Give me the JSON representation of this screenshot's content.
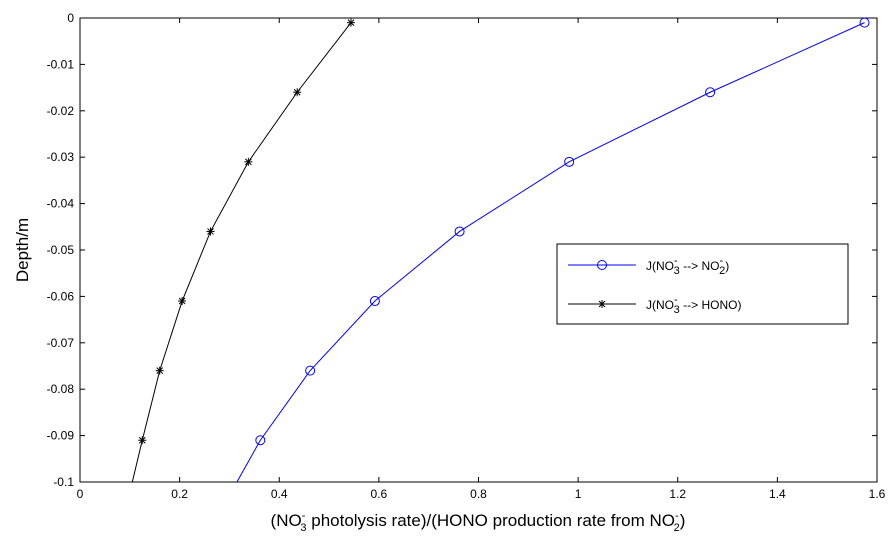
{
  "chart_data": {
    "type": "line",
    "xlabel": "(NO3- photolysis rate)/(HONO production rate from NO2-)",
    "ylabel": "Depth/m",
    "xlim": [
      0,
      1.6
    ],
    "ylim": [
      -0.1,
      0
    ],
    "x_ticks": [
      "0",
      "0.2",
      "0.4",
      "0.6",
      "0.8",
      "1",
      "1.2",
      "1.4",
      "1.6"
    ],
    "y_ticks": [
      "0",
      "-0.01",
      "-0.02",
      "-0.03",
      "-0.04",
      "-0.05",
      "-0.06",
      "-0.07",
      "-0.08",
      "-0.09",
      "-0.1"
    ],
    "grid": false,
    "legend_position": "right",
    "series": [
      {
        "name": "J(NO3- --> NO2-)",
        "color": "#0000ff",
        "marker": "circle",
        "x": [
          0.315,
          0.362,
          0.462,
          0.592,
          0.762,
          0.982,
          1.265,
          1.575
        ],
        "y": [
          -0.1,
          -0.091,
          -0.076,
          -0.061,
          -0.046,
          -0.031,
          -0.016,
          -0.001
        ],
        "marker_indices": [
          1,
          2,
          3,
          4,
          5,
          6,
          7
        ]
      },
      {
        "name": "J(NO3- --> HONO)",
        "color": "#000000",
        "marker": "star",
        "x": [
          0.105,
          0.125,
          0.16,
          0.205,
          0.262,
          0.338,
          0.436,
          0.544
        ],
        "y": [
          -0.1,
          -0.091,
          -0.076,
          -0.061,
          -0.046,
          -0.031,
          -0.016,
          -0.001
        ],
        "marker_indices": [
          1,
          2,
          3,
          4,
          5,
          6,
          7
        ]
      }
    ]
  }
}
